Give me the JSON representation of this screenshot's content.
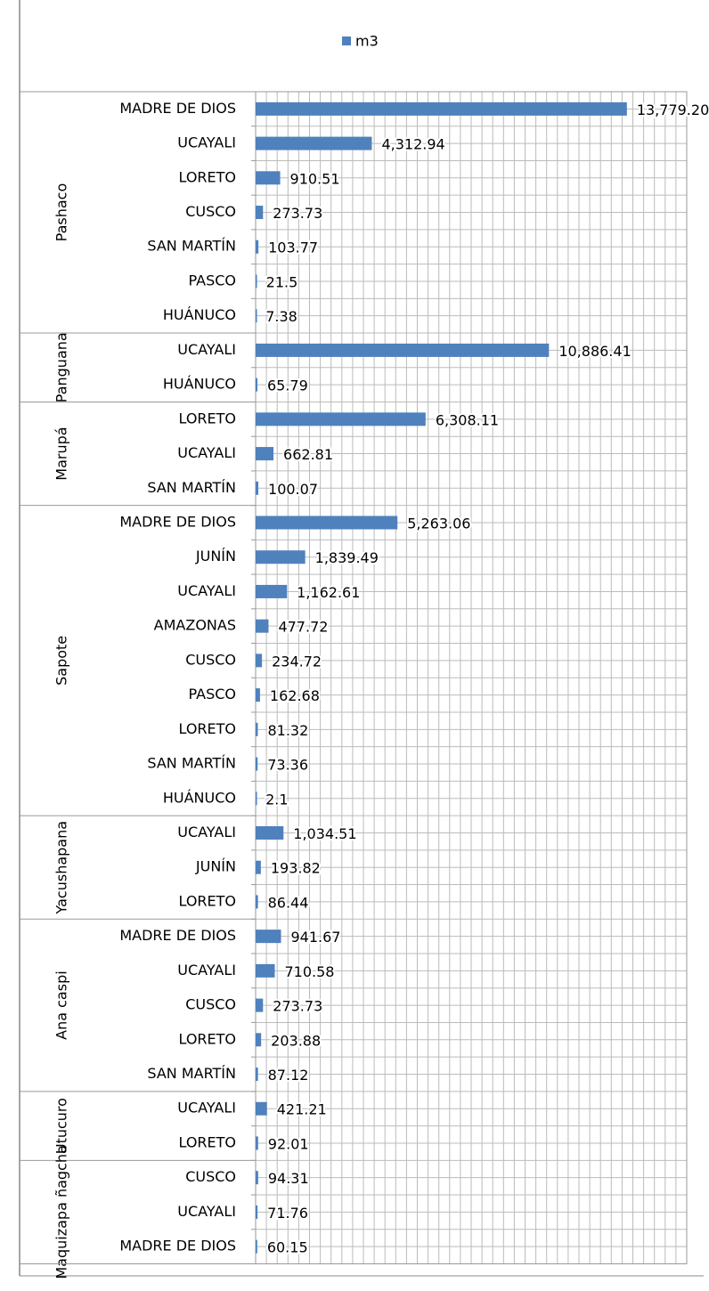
{
  "chart_data": {
    "type": "bar",
    "groups": [
      {
        "name": "Pashaco",
        "categories": [
          "MADRE DE DIOS",
          "UCAYALI",
          "LORETO",
          "CUSCO",
          "SAN MARTÍN",
          "PASCO",
          "HUÁNUCO"
        ]
      },
      {
        "name": "Panguana",
        "categories": [
          "UCAYALI",
          "HUÁNUCO"
        ]
      },
      {
        "name": "Marupá",
        "categories": [
          "LORETO",
          "UCAYALI",
          "SAN MARTÍN"
        ]
      },
      {
        "name": "Sapote",
        "categories": [
          "MADRE DE DIOS",
          "JUNÍN",
          "UCAYALI",
          "AMAZONAS",
          "CUSCO",
          "PASCO",
          "LORETO",
          "SAN MARTÍN",
          "HUÁNUCO"
        ]
      },
      {
        "name": "Yacushapana",
        "categories": [
          "UCAYALI",
          "JUNÍN",
          "LORETO"
        ]
      },
      {
        "name": "Ana caspi",
        "categories": [
          "MADRE DE DIOS",
          "UCAYALI",
          "CUSCO",
          "LORETO",
          "SAN MARTÍN"
        ]
      },
      {
        "name": "Utucuro",
        "categories": [
          "UCAYALI",
          "LORETO"
        ]
      },
      {
        "name": "Maquizapa ñagcha",
        "categories": [
          "CUSCO",
          "UCAYALI",
          "MADRE DE DIOS"
        ]
      }
    ],
    "series": [
      {
        "name": "m3",
        "color": "#4f81bd",
        "values": [
          13779.2,
          4312.94,
          910.51,
          273.73,
          103.77,
          21.5,
          7.38,
          10886.41,
          65.79,
          6308.11,
          662.81,
          100.07,
          5263.06,
          1839.49,
          1162.61,
          477.72,
          234.72,
          162.68,
          81.32,
          73.36,
          2.1,
          1034.51,
          193.82,
          86.44,
          941.67,
          710.58,
          273.73,
          203.88,
          87.12,
          421.21,
          92.01,
          94.31,
          71.76,
          60.15
        ],
        "value_labels": [
          "13,779.20",
          "4,312.94",
          "910.51",
          "273.73",
          "103.77",
          "21.5",
          "7.38",
          "10,886.41",
          "65.79",
          "6,308.11",
          "662.81",
          "100.07",
          "5,263.06",
          "1,839.49",
          "1,162.61",
          "477.72",
          "234.72",
          "162.68",
          "81.32",
          "73.36",
          "2.1",
          "1,034.51",
          "193.82",
          "86.44",
          "941.67",
          "710.58",
          "273.73",
          "203.88",
          "87.12",
          "421.21",
          "92.01",
          "94.31",
          "71.76",
          "60.15"
        ]
      }
    ],
    "xlim": [
      0,
      16000
    ],
    "xticks": [
      0,
      400,
      800,
      1200,
      1600,
      2000,
      2400,
      2800,
      3200,
      3600,
      4000,
      4400,
      4800,
      5200,
      5600,
      6000,
      6400,
      6800,
      7200,
      7600,
      8000,
      8400,
      8800,
      9200,
      9600,
      10000,
      10400,
      10800,
      11200,
      11600,
      12000,
      12400,
      12800,
      13200,
      13600,
      14000,
      14400,
      14800,
      15200,
      15600,
      16000
    ],
    "grid": true,
    "legend": "top"
  }
}
